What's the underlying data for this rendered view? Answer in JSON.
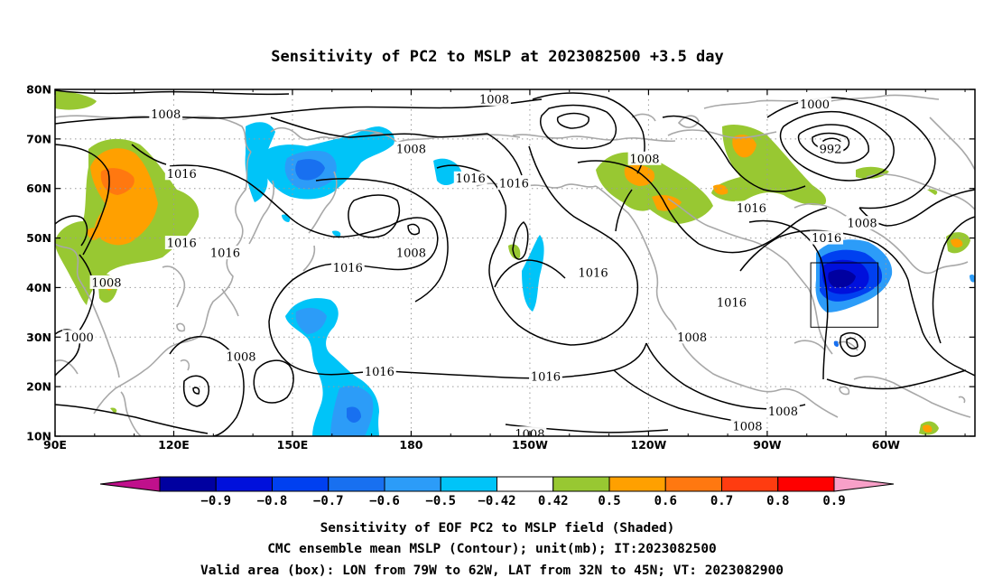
{
  "title": "Sensitivity of PC2 to MSLP at 2023082500 +3.5 day",
  "lon_ticks": [
    {
      "lon": 90,
      "label": "90E"
    },
    {
      "lon": 120,
      "label": "120E"
    },
    {
      "lon": 150,
      "label": "150E"
    },
    {
      "lon": 180,
      "label": "180"
    },
    {
      "lon": 210,
      "label": "150W"
    },
    {
      "lon": 240,
      "label": "120W"
    },
    {
      "lon": 270,
      "label": "90W"
    },
    {
      "lon": 300,
      "label": "60W"
    }
  ],
  "lat_ticks": [
    {
      "lat": 80,
      "label": "80N"
    },
    {
      "lat": 70,
      "label": "70N"
    },
    {
      "lat": 60,
      "label": "60N"
    },
    {
      "lat": 50,
      "label": "50N"
    },
    {
      "lat": 40,
      "label": "40N"
    },
    {
      "lat": 30,
      "label": "30N"
    },
    {
      "lat": 20,
      "label": "20N"
    },
    {
      "lat": 10,
      "label": "10N"
    }
  ],
  "map_extent": {
    "lon_min": 90,
    "lon_max": 322.5,
    "lat_min": 10,
    "lat_max": 80
  },
  "grid": true,
  "valid_box": {
    "lon_min": 281,
    "lon_max": 298,
    "lat_min": 32,
    "lat_max": 45
  },
  "colorbar": {
    "labels": [
      "−0.9",
      "−0.8",
      "−0.7",
      "−0.6",
      "−0.5",
      "−0.42",
      "0.42",
      "0.5",
      "0.6",
      "0.7",
      "0.8",
      "0.9"
    ],
    "colors": [
      "#c0108c",
      "#0000a0",
      "#0010dc",
      "#0040f0",
      "#1870f0",
      "#2c9cf8",
      "#00c4f8",
      "#ffffff",
      "#98c832",
      "#ffa000",
      "#ff7810",
      "#ff3c10",
      "#fe0000",
      "#f8a0c8"
    ]
  },
  "footer": {
    "line1": "Sensitivity of EOF PC2 to MSLP field (Shaded)",
    "line2": "CMC ensemble mean MSLP (Contour); unit(mb); IT:2023082500",
    "line3": "Valid area (box): LON from 79W to 62W, LAT from 32N to 45N; VT: 2023082900"
  },
  "contour_labels": [
    {
      "text": "1008",
      "lon": 118,
      "lat": 75
    },
    {
      "text": "1016",
      "lon": 122,
      "lat": 63
    },
    {
      "text": "1008",
      "lon": 180,
      "lat": 68
    },
    {
      "text": "1008",
      "lon": 201,
      "lat": 78
    },
    {
      "text": "1000",
      "lon": 282,
      "lat": 77
    },
    {
      "text": "992",
      "lon": 286,
      "lat": 68
    },
    {
      "text": "1008",
      "lon": 239,
      "lat": 66
    },
    {
      "text": "1016",
      "lon": 195,
      "lat": 62
    },
    {
      "text": "1016",
      "lon": 206,
      "lat": 61
    },
    {
      "text": "1016",
      "lon": 266,
      "lat": 56
    },
    {
      "text": "1008",
      "lon": 294,
      "lat": 53
    },
    {
      "text": "1016",
      "lon": 285,
      "lat": 50
    },
    {
      "text": "1008",
      "lon": 180,
      "lat": 47
    },
    {
      "text": "1016",
      "lon": 133,
      "lat": 47
    },
    {
      "text": "1016",
      "lon": 122,
      "lat": 49
    },
    {
      "text": "1016",
      "lon": 164,
      "lat": 44
    },
    {
      "text": "1008",
      "lon": 103,
      "lat": 41
    },
    {
      "text": "1016",
      "lon": 226,
      "lat": 43
    },
    {
      "text": "1016",
      "lon": 261,
      "lat": 37
    },
    {
      "text": "1008",
      "lon": 251,
      "lat": 30
    },
    {
      "text": "1000",
      "lon": 96,
      "lat": 30
    },
    {
      "text": "1008",
      "lon": 137,
      "lat": 26
    },
    {
      "text": "1016",
      "lon": 172,
      "lat": 23
    },
    {
      "text": "1016",
      "lon": 214,
      "lat": 22
    },
    {
      "text": "1008",
      "lon": 274,
      "lat": 15
    },
    {
      "text": "1008",
      "lon": 265,
      "lat": 12
    },
    {
      "text": "1008",
      "lon": 210,
      "lat": 10.5
    }
  ]
}
